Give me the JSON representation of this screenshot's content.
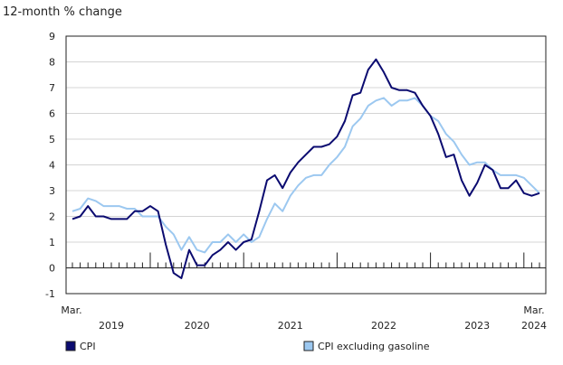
{
  "chart_data": {
    "type": "line",
    "ylabel": "12-month % change",
    "ylim": [
      -1,
      9
    ],
    "yticks": [
      -1,
      0,
      1,
      2,
      3,
      4,
      5,
      6,
      7,
      8,
      9
    ],
    "x_start_label": "Mar.",
    "x_end_label": "Mar.",
    "year_labels": [
      "2019",
      "2020",
      "2021",
      "2022",
      "2023",
      "2024"
    ],
    "x": [
      "2019-03",
      "2019-04",
      "2019-05",
      "2019-06",
      "2019-07",
      "2019-08",
      "2019-09",
      "2019-10",
      "2019-11",
      "2019-12",
      "2020-01",
      "2020-02",
      "2020-03",
      "2020-04",
      "2020-05",
      "2020-06",
      "2020-07",
      "2020-08",
      "2020-09",
      "2020-10",
      "2020-11",
      "2020-12",
      "2021-01",
      "2021-02",
      "2021-03",
      "2021-04",
      "2021-05",
      "2021-06",
      "2021-07",
      "2021-08",
      "2021-09",
      "2021-10",
      "2021-11",
      "2021-12",
      "2022-01",
      "2022-02",
      "2022-03",
      "2022-04",
      "2022-05",
      "2022-06",
      "2022-07",
      "2022-08",
      "2022-09",
      "2022-10",
      "2022-11",
      "2022-12",
      "2023-01",
      "2023-02",
      "2023-03",
      "2023-04",
      "2023-05",
      "2023-06",
      "2023-07",
      "2023-08",
      "2023-09",
      "2023-10",
      "2023-11",
      "2023-12",
      "2024-01",
      "2024-02",
      "2024-03"
    ],
    "grid": "horizontal",
    "legend_position": "bottom",
    "series": [
      {
        "name": "CPI",
        "color": "#0b0b70",
        "values": [
          1.9,
          2.0,
          2.4,
          2.0,
          2.0,
          1.9,
          1.9,
          1.9,
          2.2,
          2.2,
          2.4,
          2.2,
          0.9,
          -0.2,
          -0.4,
          0.7,
          0.1,
          0.1,
          0.5,
          0.7,
          1.0,
          0.7,
          1.0,
          1.1,
          2.2,
          3.4,
          3.6,
          3.1,
          3.7,
          4.1,
          4.4,
          4.7,
          4.7,
          4.8,
          5.1,
          5.7,
          6.7,
          6.8,
          7.7,
          8.1,
          7.6,
          7.0,
          6.9,
          6.9,
          6.8,
          6.3,
          5.9,
          5.2,
          4.3,
          4.4,
          3.4,
          2.8,
          3.3,
          4.0,
          3.8,
          3.1,
          3.1,
          3.4,
          2.9,
          2.8,
          2.9
        ]
      },
      {
        "name": "CPI excluding gasoline",
        "color": "#9cc8f0",
        "values": [
          2.2,
          2.3,
          2.7,
          2.6,
          2.4,
          2.4,
          2.4,
          2.3,
          2.3,
          2.0,
          2.0,
          2.0,
          1.6,
          1.3,
          0.7,
          1.2,
          0.7,
          0.6,
          1.0,
          1.0,
          1.3,
          1.0,
          1.3,
          1.0,
          1.2,
          1.9,
          2.5,
          2.2,
          2.8,
          3.2,
          3.5,
          3.6,
          3.6,
          4.0,
          4.3,
          4.7,
          5.5,
          5.8,
          6.3,
          6.5,
          6.6,
          6.3,
          6.5,
          6.5,
          6.6,
          6.3,
          5.9,
          5.7,
          5.2,
          4.9,
          4.4,
          4.0,
          4.1,
          4.1,
          3.8,
          3.6,
          3.6,
          3.6,
          3.5,
          3.2,
          2.9
        ]
      }
    ]
  }
}
